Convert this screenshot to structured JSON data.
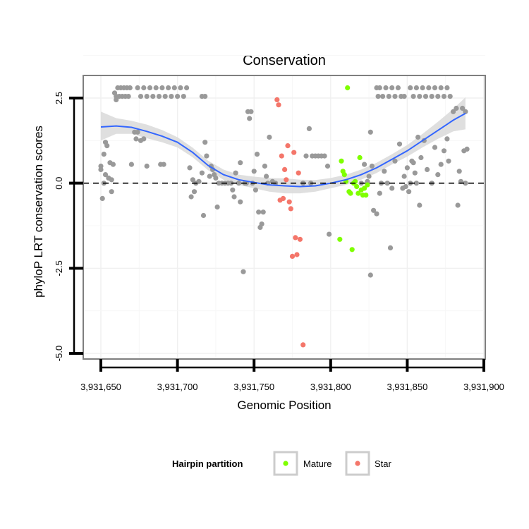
{
  "chart_data": {
    "type": "scatter",
    "title": "Conservation",
    "xlabel": "Genomic Position",
    "ylabel": "phyloP LRT conservation scores",
    "xlim": [
      3931640,
      3931900
    ],
    "ylim": [
      -5.0,
      3.0
    ],
    "xticks": [
      3931650,
      3931700,
      3931750,
      3931800,
      3931850,
      3931900
    ],
    "xtick_labels": [
      "3,931,650",
      "3,931,700",
      "3,931,750",
      "3,931,800",
      "3,931,850",
      "3,931,900"
    ],
    "yticks": [
      -5.0,
      -2.5,
      0.0,
      2.5
    ],
    "ytick_labels": [
      "-5.0",
      "-2.5",
      "0.0",
      "2.5"
    ],
    "reference_line": {
      "y": 0.0,
      "style": "dashed"
    },
    "legend": {
      "title": "Hairpin partition",
      "position": "bottom",
      "entries": [
        {
          "label": "Mature",
          "color": "#7fff00"
        },
        {
          "label": "Star",
          "color": "#f4766a"
        }
      ]
    },
    "colors": {
      "other": "#999999",
      "Mature": "#7fff00",
      "Star": "#f4766a",
      "smooth": "#3366ff",
      "ribbon": "#d9d9d9"
    },
    "smooth_curve": {
      "x": [
        3931650,
        3931660,
        3931670,
        3931680,
        3931690,
        3931700,
        3931710,
        3931720,
        3931730,
        3931740,
        3931750,
        3931760,
        3931770,
        3931780,
        3931790,
        3931800,
        3931810,
        3931820,
        3931830,
        3931840,
        3931850,
        3931860,
        3931870,
        3931880,
        3931888
      ],
      "y": [
        1.65,
        1.68,
        1.64,
        1.52,
        1.38,
        1.2,
        0.9,
        0.52,
        0.25,
        0.1,
        0.02,
        -0.05,
        -0.08,
        -0.1,
        -0.08,
        0.0,
        0.1,
        0.25,
        0.45,
        0.7,
        0.95,
        1.25,
        1.55,
        1.85,
        2.05
      ],
      "lower": [
        1.25,
        1.45,
        1.45,
        1.32,
        1.2,
        1.05,
        0.76,
        0.38,
        0.1,
        -0.05,
        -0.15,
        -0.25,
        -0.3,
        -0.3,
        -0.25,
        -0.15,
        -0.05,
        0.1,
        0.3,
        0.55,
        0.78,
        1.05,
        1.3,
        1.52,
        1.58
      ],
      "upper": [
        2.1,
        1.91,
        1.83,
        1.72,
        1.56,
        1.35,
        1.04,
        0.66,
        0.4,
        0.25,
        0.19,
        0.15,
        0.14,
        0.1,
        0.09,
        0.15,
        0.25,
        0.4,
        0.6,
        0.85,
        1.12,
        1.45,
        1.8,
        2.18,
        2.52
      ]
    },
    "series": [
      {
        "name": "Other",
        "points": [
          [
            3931650,
            0.4
          ],
          [
            3931650,
            0.5
          ],
          [
            3931651,
            -0.45
          ],
          [
            3931652,
            0.0
          ],
          [
            3931652,
            0.85
          ],
          [
            3931653,
            1.2
          ],
          [
            3931653,
            0.25
          ],
          [
            3931654,
            1.1
          ],
          [
            3931655,
            0.15
          ],
          [
            3931656,
            0.6
          ],
          [
            3931657,
            0.1
          ],
          [
            3931657,
            -0.25
          ],
          [
            3931658,
            0.55
          ],
          [
            3931659,
            2.65
          ],
          [
            3931660,
            2.55
          ],
          [
            3931660,
            2.45
          ],
          [
            3931661,
            2.8
          ],
          [
            3931662,
            2.55
          ],
          [
            3931663,
            2.8
          ],
          [
            3931664,
            2.55
          ],
          [
            3931665,
            2.8
          ],
          [
            3931666,
            2.55
          ],
          [
            3931667,
            2.8
          ],
          [
            3931668,
            2.55
          ],
          [
            3931669,
            2.8
          ],
          [
            3931674,
            2.8
          ],
          [
            3931676,
            2.55
          ],
          [
            3931678,
            2.8
          ],
          [
            3931680,
            2.55
          ],
          [
            3931682,
            2.8
          ],
          [
            3931684,
            2.55
          ],
          [
            3931686,
            2.8
          ],
          [
            3931688,
            2.55
          ],
          [
            3931690,
            2.8
          ],
          [
            3931692,
            2.55
          ],
          [
            3931694,
            2.8
          ],
          [
            3931696,
            2.55
          ],
          [
            3931698,
            2.8
          ],
          [
            3931700,
            2.55
          ],
          [
            3931702,
            2.8
          ],
          [
            3931704,
            2.55
          ],
          [
            3931706,
            2.8
          ],
          [
            3931716,
            2.55
          ],
          [
            3931718,
            2.55
          ],
          [
            3931670,
            0.55
          ],
          [
            3931672,
            1.5
          ],
          [
            3931673,
            1.3
          ],
          [
            3931674,
            1.5
          ],
          [
            3931676,
            1.25
          ],
          [
            3931678,
            1.3
          ],
          [
            3931680,
            0.5
          ],
          [
            3931689,
            0.55
          ],
          [
            3931691,
            0.55
          ],
          [
            3931708,
            0.45
          ],
          [
            3931709,
            -0.4
          ],
          [
            3931710,
            0.1
          ],
          [
            3931711,
            -0.25
          ],
          [
            3931712,
            0.0
          ],
          [
            3931714,
            0.05
          ],
          [
            3931716,
            0.3
          ],
          [
            3931717,
            -0.95
          ],
          [
            3931718,
            1.2
          ],
          [
            3931719,
            0.8
          ],
          [
            3931721,
            0.2
          ],
          [
            3931722,
            0.5
          ],
          [
            3931723,
            0.4
          ],
          [
            3931724,
            0.25
          ],
          [
            3931725,
            0.15
          ],
          [
            3931726,
            -0.7
          ],
          [
            3931727,
            0.0
          ],
          [
            3931729,
            0.0
          ],
          [
            3931731,
            0.0
          ],
          [
            3931733,
            0.0
          ],
          [
            3931735,
            0.0
          ],
          [
            3931736,
            -0.2
          ],
          [
            3931737,
            -0.4
          ],
          [
            3931738,
            0.3
          ],
          [
            3931740,
            0.0
          ],
          [
            3931741,
            -0.55
          ],
          [
            3931741,
            0.6
          ],
          [
            3931743,
            -2.6
          ],
          [
            3931744,
            0.0
          ],
          [
            3931745,
            0.0
          ],
          [
            3931746,
            2.1
          ],
          [
            3931747,
            1.9
          ],
          [
            3931748,
            2.1
          ],
          [
            3931749,
            0.0
          ],
          [
            3931750,
            0.35
          ],
          [
            3931751,
            -0.2
          ],
          [
            3931752,
            0.85
          ],
          [
            3931753,
            -0.85
          ],
          [
            3931754,
            -1.3
          ],
          [
            3931755,
            -1.2
          ],
          [
            3931756,
            -0.85
          ],
          [
            3931757,
            0.5
          ],
          [
            3931758,
            0.2
          ],
          [
            3931759,
            0.0
          ],
          [
            3931760,
            1.35
          ],
          [
            3931762,
            0.05
          ],
          [
            3931764,
            0.0
          ],
          [
            3931782,
            0.0
          ],
          [
            3931784,
            0.8
          ],
          [
            3931786,
            1.6
          ],
          [
            3931787,
            0.0
          ],
          [
            3931788,
            0.8
          ],
          [
            3931790,
            0.8
          ],
          [
            3931792,
            0.8
          ],
          [
            3931794,
            0.8
          ],
          [
            3931796,
            0.8
          ],
          [
            3931798,
            0.5
          ],
          [
            3931799,
            -1.5
          ],
          [
            3931820,
            0.0
          ],
          [
            3931822,
            0.55
          ],
          [
            3931824,
            0.05
          ],
          [
            3931825,
            0.2
          ],
          [
            3931826,
            -2.7
          ],
          [
            3931826,
            1.5
          ],
          [
            3931827,
            0.5
          ],
          [
            3931828,
            -0.8
          ],
          [
            3931830,
            -0.9
          ],
          [
            3931832,
            -0.3
          ],
          [
            3931833,
            0.0
          ],
          [
            3931835,
            0.35
          ],
          [
            3931837,
            0.0
          ],
          [
            3931839,
            -1.9
          ],
          [
            3931840,
            -0.15
          ],
          [
            3931842,
            0.65
          ],
          [
            3931845,
            1.15
          ],
          [
            3931830,
            2.8
          ],
          [
            3931831,
            2.55
          ],
          [
            3931832,
            2.8
          ],
          [
            3931834,
            2.55
          ],
          [
            3931836,
            2.8
          ],
          [
            3931838,
            2.55
          ],
          [
            3931840,
            2.8
          ],
          [
            3931842,
            2.55
          ],
          [
            3931844,
            2.8
          ],
          [
            3931846,
            2.55
          ],
          [
            3931848,
            2.55
          ],
          [
            3931852,
            2.8
          ],
          [
            3931854,
            2.55
          ],
          [
            3931856,
            2.8
          ],
          [
            3931858,
            2.55
          ],
          [
            3931860,
            2.8
          ],
          [
            3931862,
            2.55
          ],
          [
            3931864,
            2.8
          ],
          [
            3931866,
            2.55
          ],
          [
            3931868,
            2.8
          ],
          [
            3931870,
            2.55
          ],
          [
            3931872,
            2.8
          ],
          [
            3931874,
            2.55
          ],
          [
            3931876,
            2.8
          ],
          [
            3931878,
            2.55
          ],
          [
            3931847,
            -0.15
          ],
          [
            3931848,
            0.2
          ],
          [
            3931849,
            -0.1
          ],
          [
            3931850,
            0.45
          ],
          [
            3931851,
            -0.25
          ],
          [
            3931852,
            0.0
          ],
          [
            3931853,
            0.65
          ],
          [
            3931854,
            0.6
          ],
          [
            3931855,
            0.3
          ],
          [
            3931856,
            0.0
          ],
          [
            3931857,
            1.35
          ],
          [
            3931858,
            -0.65
          ],
          [
            3931859,
            0.75
          ],
          [
            3931861,
            1.25
          ],
          [
            3931863,
            0.4
          ],
          [
            3931866,
            0.0
          ],
          [
            3931868,
            1.05
          ],
          [
            3931870,
            0.25
          ],
          [
            3931872,
            0.55
          ],
          [
            3931874,
            0.95
          ],
          [
            3931876,
            1.3
          ],
          [
            3931877,
            0.65
          ],
          [
            3931880,
            2.1
          ],
          [
            3931882,
            2.2
          ],
          [
            3931883,
            -0.65
          ],
          [
            3931884,
            0.35
          ],
          [
            3931885,
            0.05
          ],
          [
            3931886,
            2.2
          ],
          [
            3931887,
            0.95
          ],
          [
            3931888,
            2.1
          ],
          [
            3931888,
            0.0
          ],
          [
            3931889,
            1.0
          ]
        ]
      },
      {
        "name": "Mature",
        "points": [
          [
            3931806,
            -1.65
          ],
          [
            3931807,
            0.65
          ],
          [
            3931808,
            0.35
          ],
          [
            3931809,
            0.25
          ],
          [
            3931810,
            0.05
          ],
          [
            3931811,
            2.8
          ],
          [
            3931812,
            -0.25
          ],
          [
            3931813,
            -0.3
          ],
          [
            3931814,
            -1.95
          ],
          [
            3931815,
            0.0
          ],
          [
            3931816,
            0.05
          ],
          [
            3931817,
            -0.1
          ],
          [
            3931818,
            -0.3
          ],
          [
            3931819,
            0.75
          ],
          [
            3931820,
            -0.2
          ],
          [
            3931821,
            -0.35
          ],
          [
            3931822,
            -0.15
          ],
          [
            3931823,
            -0.35
          ],
          [
            3931824,
            -0.05
          ]
        ]
      },
      {
        "name": "Star",
        "points": [
          [
            3931765,
            2.45
          ],
          [
            3931766,
            2.3
          ],
          [
            3931767,
            -0.5
          ],
          [
            3931768,
            0.8
          ],
          [
            3931769,
            -0.45
          ],
          [
            3931770,
            0.4
          ],
          [
            3931771,
            0.1
          ],
          [
            3931772,
            1.1
          ],
          [
            3931773,
            -0.55
          ],
          [
            3931774,
            -0.75
          ],
          [
            3931775,
            -2.15
          ],
          [
            3931776,
            0.9
          ],
          [
            3931777,
            -1.6
          ],
          [
            3931778,
            -2.1
          ],
          [
            3931779,
            0.3
          ],
          [
            3931780,
            -1.65
          ],
          [
            3931782,
            -4.75
          ]
        ]
      }
    ]
  }
}
